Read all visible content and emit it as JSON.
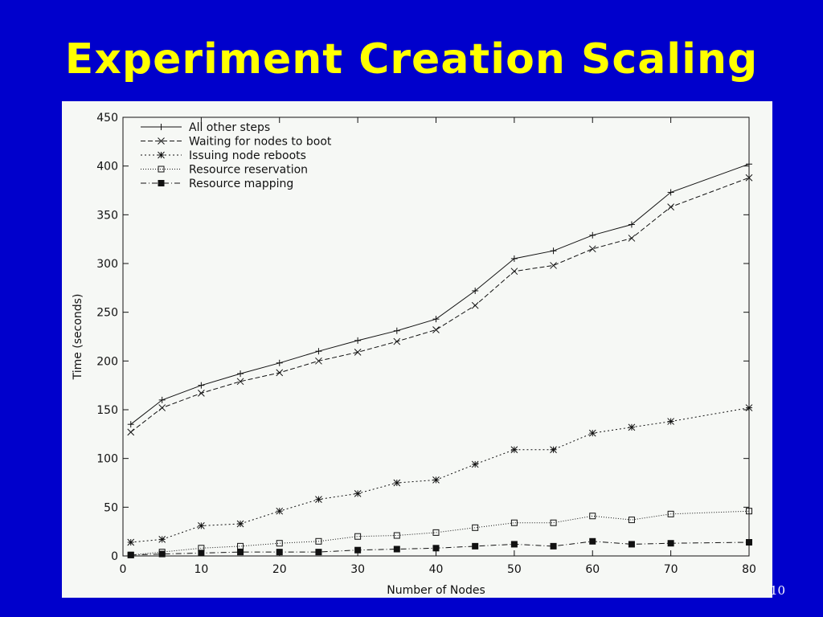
{
  "slide": {
    "title": "Experiment Creation Scaling",
    "page_number": "10",
    "background_color": "#0000cc",
    "title_color": "#ffff00"
  },
  "chart_data": {
    "type": "line",
    "title": "",
    "xlabel": "Number of Nodes",
    "ylabel": "Time (seconds)",
    "xlim": [
      0,
      80
    ],
    "ylim": [
      0,
      450
    ],
    "xticks": [
      0,
      10,
      20,
      30,
      40,
      50,
      60,
      70,
      80
    ],
    "yticks": [
      0,
      50,
      100,
      150,
      200,
      250,
      300,
      350,
      400,
      450
    ],
    "grid": false,
    "legend_position": "top-left",
    "x": [
      1,
      5,
      10,
      15,
      20,
      25,
      30,
      35,
      40,
      45,
      50,
      55,
      60,
      65,
      70,
      80
    ],
    "series": [
      {
        "name": "All other steps",
        "marker": "plus",
        "dash": "solid",
        "values": [
          135,
          160,
          175,
          187,
          198,
          210,
          221,
          231,
          243,
          272,
          305,
          313,
          329,
          340,
          373,
          402
        ]
      },
      {
        "name": "Waiting for nodes to boot",
        "marker": "x",
        "dash": "dashed",
        "values": [
          127,
          152,
          167,
          179,
          188,
          200,
          209,
          220,
          232,
          257,
          292,
          298,
          315,
          326,
          358,
          388
        ]
      },
      {
        "name": "Issuing node reboots",
        "marker": "star",
        "dash": "dotted",
        "values": [
          14,
          17,
          31,
          33,
          46,
          58,
          64,
          75,
          78,
          94,
          109,
          109,
          126,
          132,
          138,
          152
        ]
      },
      {
        "name": "Resource reservation",
        "marker": "open-square",
        "dash": "fine-dotted",
        "values": [
          1,
          4,
          8,
          10,
          13,
          15,
          20,
          21,
          24,
          29,
          34,
          34,
          41,
          37,
          43,
          46
        ]
      },
      {
        "name": "Resource mapping",
        "marker": "filled-square",
        "dash": "dash-dot",
        "values": [
          1,
          2,
          3,
          4,
          4,
          4,
          6,
          7,
          8,
          10,
          12,
          10,
          15,
          12,
          13,
          14
        ]
      }
    ]
  }
}
